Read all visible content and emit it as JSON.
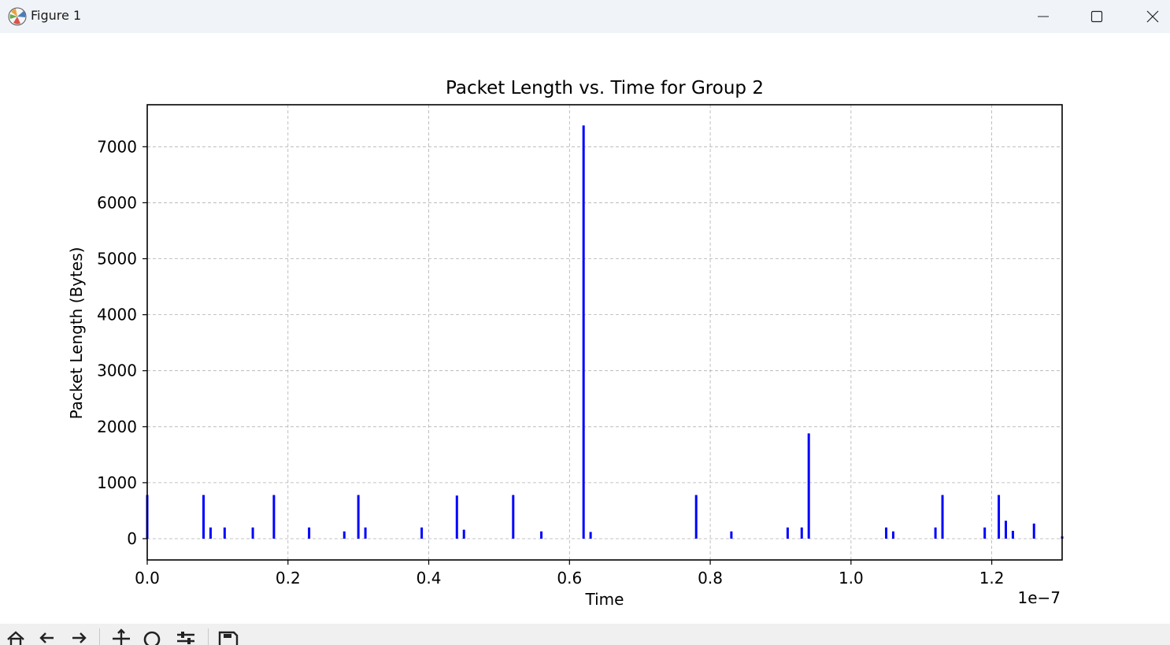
{
  "window": {
    "title": "Figure 1",
    "icon": "matplotlib-icon",
    "controls": [
      "minimize-icon",
      "maximize-icon",
      "close-icon"
    ]
  },
  "toolbar": {
    "tools": [
      "home-icon",
      "back-icon",
      "forward-icon",
      "pan-icon",
      "zoom-icon",
      "configure-subplots-icon",
      "save-icon"
    ]
  },
  "chart_data": {
    "type": "bar",
    "title": "Packet Length vs. Time for Group 2",
    "xlabel": "Time",
    "ylabel": "Packet Length (Bytes)",
    "x_offset_text": "1e−7",
    "xlim": [
      0.0,
      1.3
    ],
    "ylim": [
      -380,
      7750
    ],
    "xticks": [
      0.0,
      0.2,
      0.4,
      0.6,
      0.8,
      1.0,
      1.2
    ],
    "xtick_labels": [
      "0.0",
      "0.2",
      "0.4",
      "0.6",
      "0.8",
      "1.0",
      "1.2"
    ],
    "yticks": [
      0,
      1000,
      2000,
      3000,
      4000,
      5000,
      6000,
      7000
    ],
    "ytick_labels": [
      "0",
      "1000",
      "2000",
      "3000",
      "4000",
      "5000",
      "6000",
      "7000"
    ],
    "grid": true,
    "color": "#0000ff",
    "x": [
      0.0,
      0.08,
      0.09,
      0.11,
      0.15,
      0.18,
      0.23,
      0.28,
      0.3,
      0.31,
      0.39,
      0.44,
      0.45,
      0.52,
      0.56,
      0.62,
      0.63,
      0.78,
      0.83,
      0.91,
      0.93,
      0.94,
      1.05,
      1.06,
      1.12,
      1.13,
      1.19,
      1.21,
      1.22,
      1.23,
      1.26,
      1.3
    ],
    "values": [
      780,
      780,
      200,
      200,
      200,
      780,
      200,
      130,
      780,
      200,
      200,
      770,
      160,
      780,
      130,
      7380,
      120,
      780,
      130,
      200,
      200,
      1880,
      200,
      130,
      200,
      780,
      200,
      780,
      320,
      140,
      270,
      40
    ]
  }
}
